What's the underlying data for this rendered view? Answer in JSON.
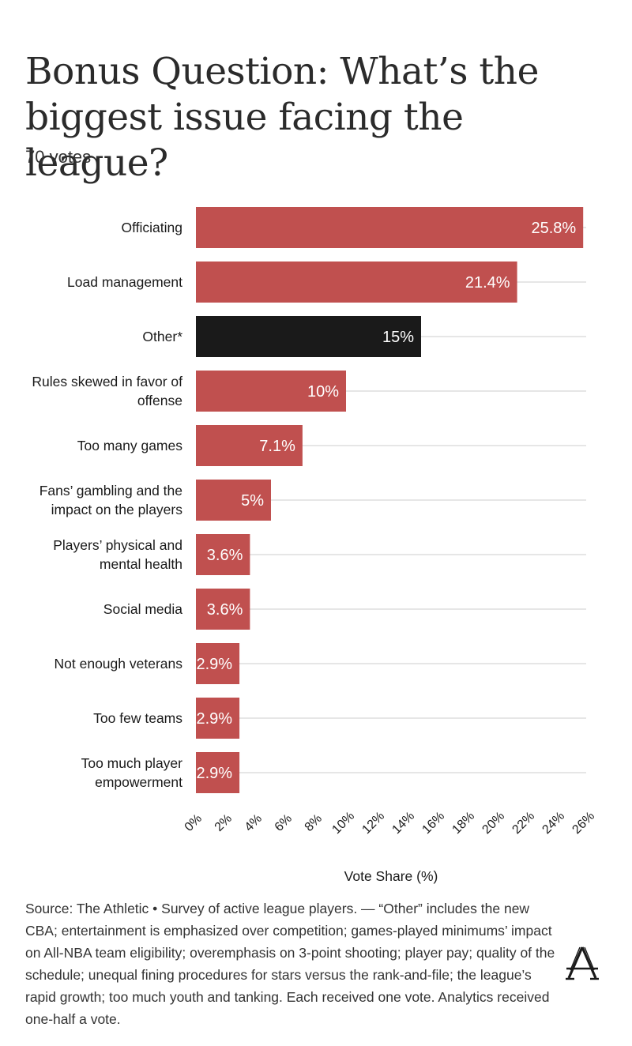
{
  "header": {
    "title": "Bonus Question: What’s the biggest issue facing the league?",
    "subtitle": "70 votes"
  },
  "chart_data": {
    "type": "bar",
    "orientation": "horizontal",
    "categories": [
      [
        "Officiating"
      ],
      [
        "Load management"
      ],
      [
        "Other*"
      ],
      [
        "Rules skewed in favor of",
        "offense"
      ],
      [
        "Too many games"
      ],
      [
        "Fans’ gambling and the",
        "impact on the players"
      ],
      [
        "Players’ physical and",
        "mental health"
      ],
      [
        "Social media"
      ],
      [
        "Not enough veterans"
      ],
      [
        "Too few teams"
      ],
      [
        "Too much player",
        "empowerment"
      ]
    ],
    "values": [
      25.8,
      21.4,
      15,
      10,
      7.1,
      5,
      3.6,
      3.6,
      2.9,
      2.9,
      2.9
    ],
    "data_labels": [
      "25.8%",
      "21.4%",
      "15%",
      "10%",
      "7.1%",
      "5%",
      "3.6%",
      "3.6%",
      "2.9%",
      "2.9%",
      "2.9%"
    ],
    "bar_colors": [
      "#c0504f",
      "#c0504f",
      "#1a1a1a",
      "#c0504f",
      "#c0504f",
      "#c0504f",
      "#c0504f",
      "#c0504f",
      "#c0504f",
      "#c0504f",
      "#c0504f"
    ],
    "x_ticks": [
      0,
      2,
      4,
      6,
      8,
      10,
      12,
      14,
      16,
      18,
      20,
      22,
      24,
      26
    ],
    "x_tick_labels": [
      "0%",
      "2%",
      "4%",
      "6%",
      "8%",
      "10%",
      "12%",
      "14%",
      "16%",
      "18%",
      "20%",
      "22%",
      "24%",
      "26%"
    ],
    "xlim": [
      0,
      26
    ],
    "xlabel": "Vote Share (%)",
    "ylabel": "",
    "grid": true
  },
  "footer": {
    "source": "Source: The Athletic • Survey of active league players. — “Other” includes the new CBA; entertainment is emphasized over competition; games-played minimums’ impact on All-NBA team eligibility; overemphasis on 3-point shooting; player pay; quality of the schedule; unequal fining procedures for stars versus the rank-and-file; the league’s rapid growth; too much youth and tanking. Each received one vote. Analytics received one-half a vote.",
    "logo_letter": "A"
  }
}
